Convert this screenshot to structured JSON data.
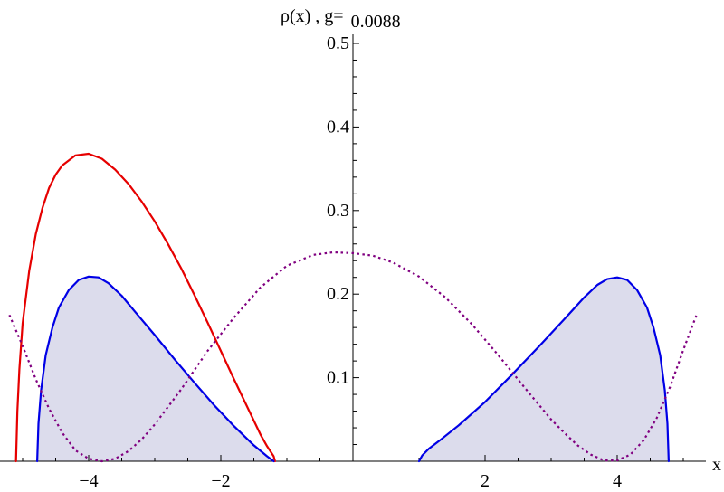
{
  "chart_data": {
    "type": "line",
    "title": {
      "prefix": "ρ(x) , g=",
      "value": "0.0088"
    },
    "xlabel": "x",
    "ylabel": "",
    "xlim": [
      -5.4,
      5.6
    ],
    "ylim": [
      0,
      0.52
    ],
    "grid": false,
    "legend": "none",
    "x_ticks": [
      -4,
      -2,
      2,
      4
    ],
    "x_tick_labels": [
      "−4",
      "−2",
      "2",
      "4"
    ],
    "y_ticks": [
      0.1,
      0.2,
      0.3,
      0.4,
      0.5
    ],
    "y_tick_labels": [
      "0.1",
      "0.2",
      "0.3",
      "0.4",
      "0.5"
    ],
    "series": [
      {
        "style": "solid",
        "color": "#e60000",
        "x": [
          -5.1,
          -5.08,
          -5.05,
          -5.0,
          -4.9,
          -4.8,
          -4.7,
          -4.6,
          -4.5,
          -4.4,
          -4.2,
          -4.0,
          -3.8,
          -3.6,
          -3.4,
          -3.2,
          -3.0,
          -2.8,
          -2.6,
          -2.4,
          -2.2,
          -2.0,
          -1.8,
          -1.6,
          -1.4,
          -1.3,
          -1.2,
          -1.18
        ],
        "y": [
          0.0,
          0.06,
          0.11,
          0.165,
          0.228,
          0.272,
          0.303,
          0.327,
          0.343,
          0.354,
          0.366,
          0.368,
          0.362,
          0.349,
          0.332,
          0.311,
          0.287,
          0.26,
          0.231,
          0.199,
          0.166,
          0.132,
          0.098,
          0.065,
          0.032,
          0.018,
          0.006,
          0.0
        ]
      },
      {
        "style": "solid-filled",
        "color": "#0000e6",
        "fill": "#dcdcec",
        "x": [
          -4.78,
          -4.76,
          -4.72,
          -4.65,
          -4.55,
          -4.45,
          -4.3,
          -4.15,
          -4.0,
          -3.85,
          -3.7,
          -3.5,
          -3.3,
          -3.0,
          -2.7,
          -2.4,
          -2.1,
          -1.8,
          -1.5,
          -1.3,
          -1.2
        ],
        "y": [
          0.0,
          0.045,
          0.085,
          0.127,
          0.16,
          0.184,
          0.205,
          0.217,
          0.221,
          0.22,
          0.213,
          0.198,
          0.179,
          0.151,
          0.122,
          0.094,
          0.067,
          0.042,
          0.019,
          0.006,
          0.0
        ]
      },
      {
        "style": "solid-filled",
        "color": "#0000e6",
        "fill": "#dcdcec",
        "x": [
          1.0,
          1.05,
          1.15,
          1.3,
          1.6,
          2.0,
          2.4,
          2.8,
          3.2,
          3.5,
          3.7,
          3.85,
          4.0,
          4.15,
          4.3,
          4.45,
          4.55,
          4.65,
          4.72,
          4.76,
          4.78
        ],
        "y": [
          0.0,
          0.007,
          0.015,
          0.024,
          0.043,
          0.071,
          0.103,
          0.136,
          0.17,
          0.196,
          0.211,
          0.218,
          0.22,
          0.217,
          0.205,
          0.184,
          0.16,
          0.127,
          0.085,
          0.045,
          0.0
        ]
      },
      {
        "style": "dotted",
        "color": "#800080",
        "x": [
          -5.2,
          -5.0,
          -4.8,
          -4.6,
          -4.4,
          -4.2,
          -4.0,
          -3.8,
          -3.6,
          -3.4,
          -3.2,
          -3.0,
          -2.6,
          -2.2,
          -1.8,
          -1.4,
          -1.0,
          -0.6,
          -0.3,
          0.0,
          0.3,
          0.6,
          1.0,
          1.4,
          1.8,
          2.2,
          2.6,
          3.0,
          3.2,
          3.4,
          3.6,
          3.8,
          4.0,
          4.2,
          4.4,
          4.6,
          4.8,
          5.0,
          5.2
        ],
        "y": [
          0.175,
          0.138,
          0.098,
          0.063,
          0.034,
          0.013,
          0.003,
          0.0,
          0.003,
          0.012,
          0.026,
          0.044,
          0.086,
          0.132,
          0.172,
          0.208,
          0.234,
          0.247,
          0.25,
          0.249,
          0.246,
          0.238,
          0.221,
          0.196,
          0.164,
          0.127,
          0.088,
          0.05,
          0.034,
          0.019,
          0.008,
          0.001,
          0.001,
          0.008,
          0.025,
          0.052,
          0.089,
          0.133,
          0.175
        ]
      }
    ]
  }
}
